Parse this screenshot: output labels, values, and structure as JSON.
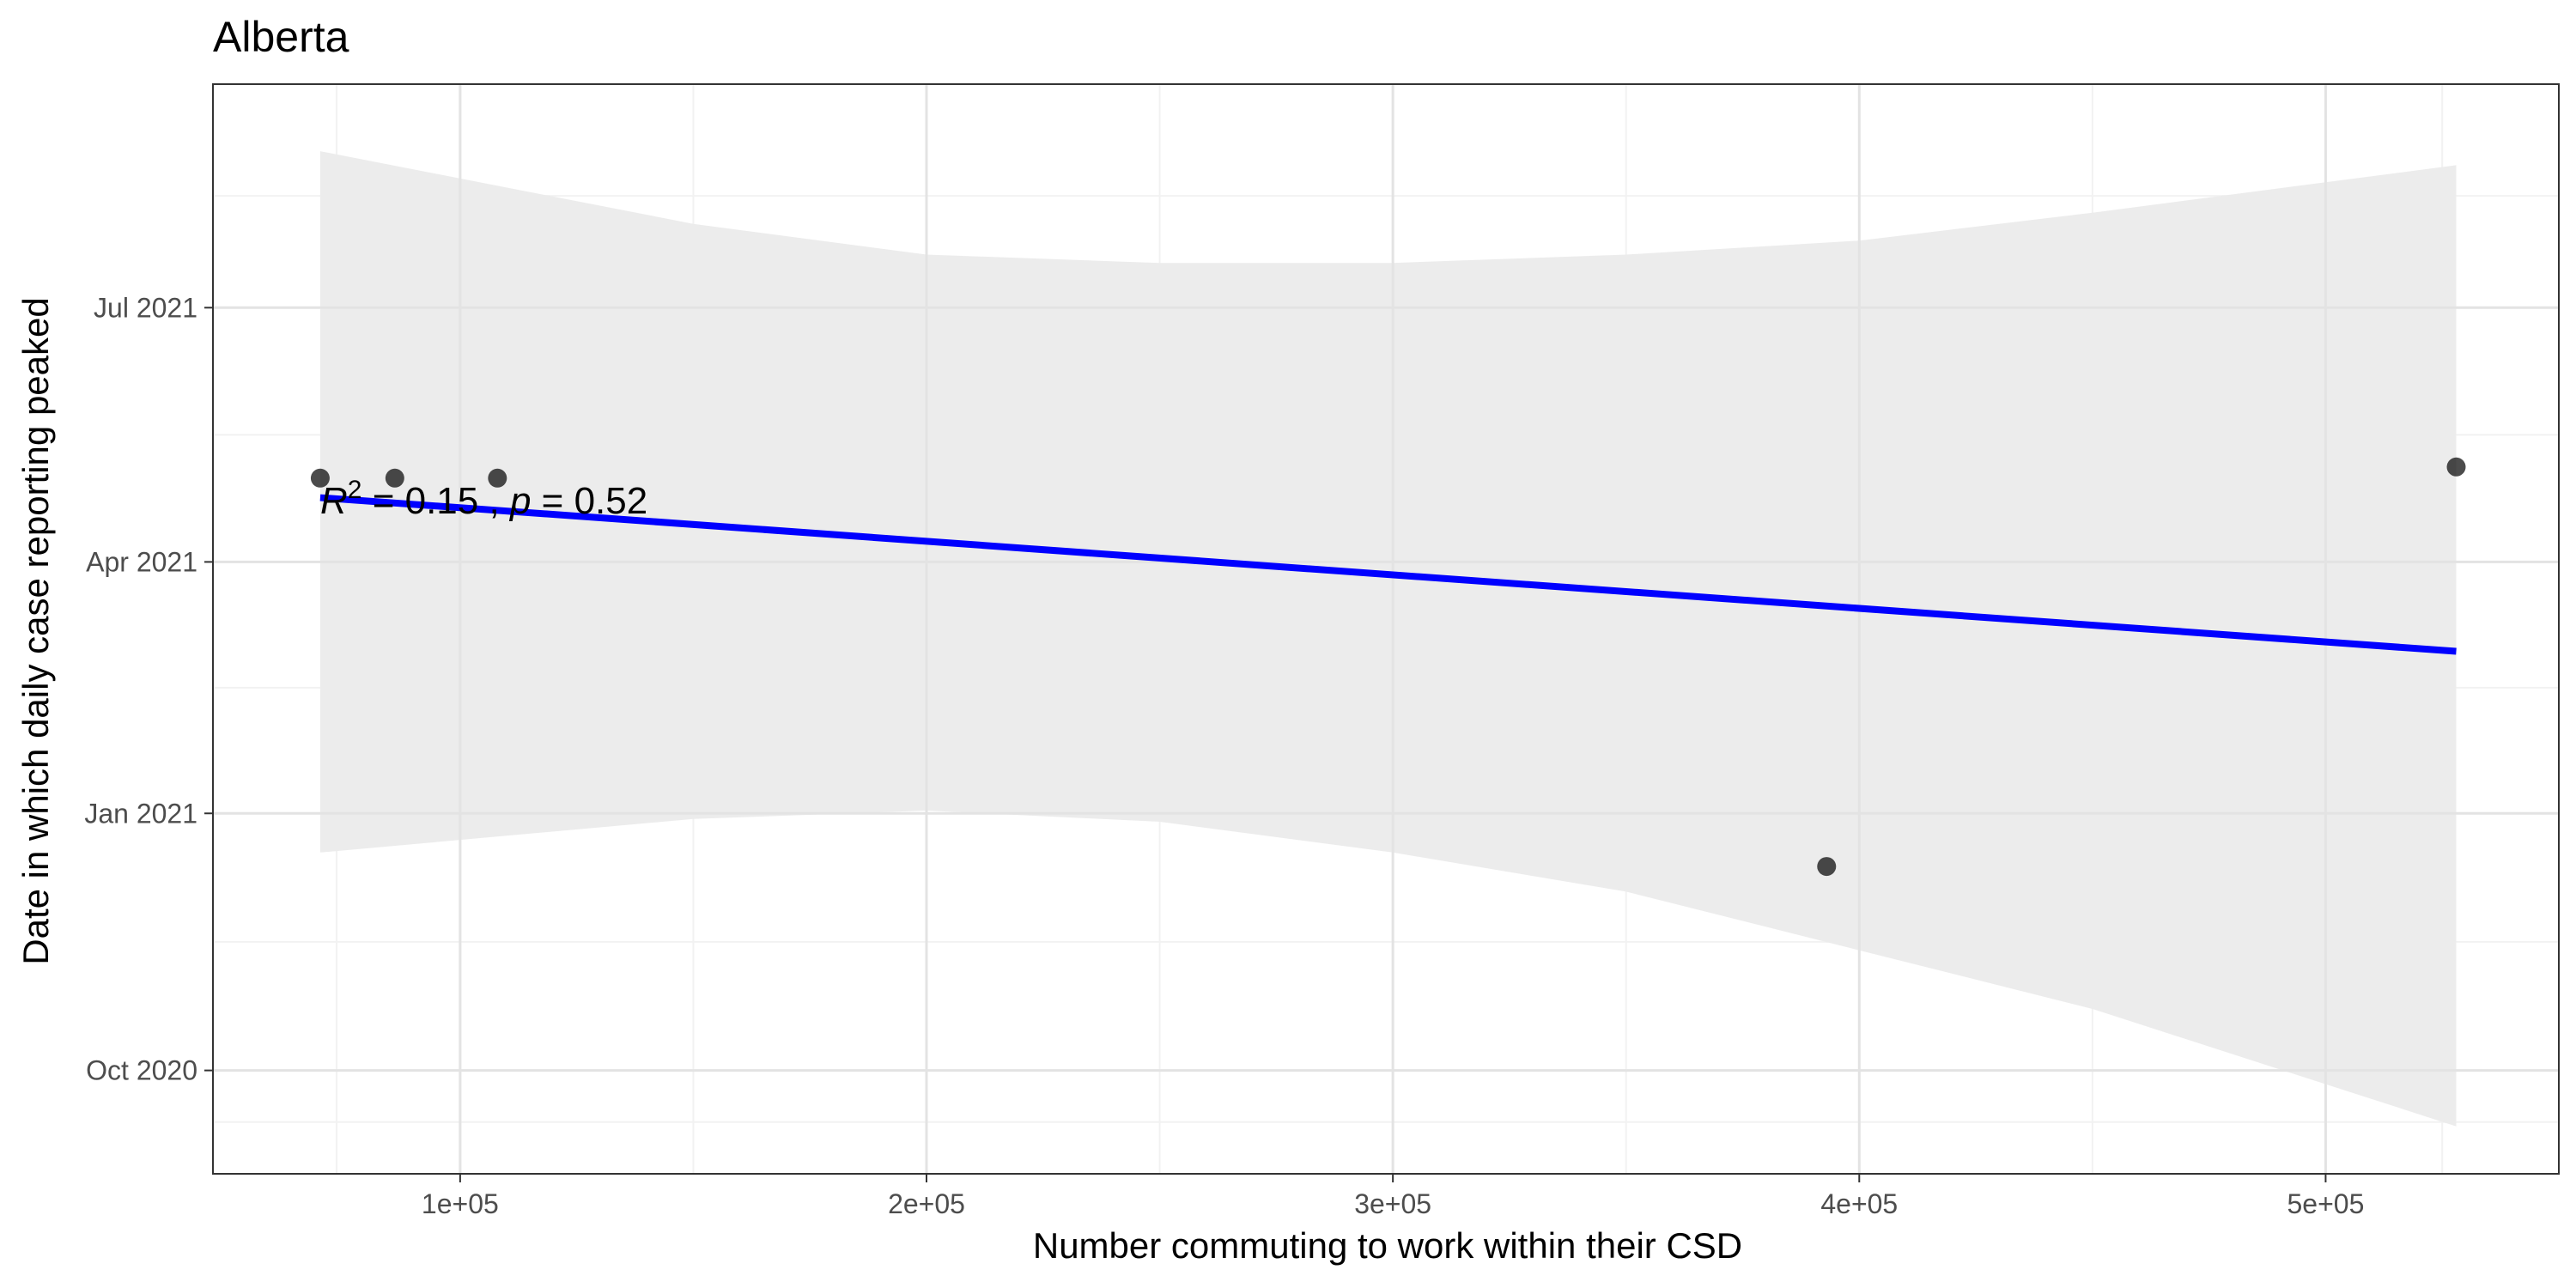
{
  "chart_data": {
    "type": "scatter",
    "title": "Alberta",
    "xlabel": "Number commuting to work within their CSD",
    "ylabel": "Date in which daily case reporting peaked",
    "xlim": [
      47000,
      550000
    ],
    "ylim": [
      "2020-08-25",
      "2021-09-19"
    ],
    "x_ticks": [
      {
        "value": 100000,
        "label": "1e+05"
      },
      {
        "value": 200000,
        "label": "2e+05"
      },
      {
        "value": 300000,
        "label": "3e+05"
      },
      {
        "value": 400000,
        "label": "4e+05"
      },
      {
        "value": 500000,
        "label": "5e+05"
      }
    ],
    "y_ticks": [
      {
        "value": "2020-10-01",
        "label": "Oct 2020"
      },
      {
        "value": "2021-01-01",
        "label": "Jan 2021"
      },
      {
        "value": "2021-04-01",
        "label": "Apr 2021"
      },
      {
        "value": "2021-07-01",
        "label": "Jul 2021"
      }
    ],
    "points": [
      {
        "x": 70000,
        "y": "2021-05-01"
      },
      {
        "x": 86000,
        "y": "2021-05-01"
      },
      {
        "x": 108000,
        "y": "2021-05-01"
      },
      {
        "x": 393000,
        "y": "2020-12-13"
      },
      {
        "x": 528000,
        "y": "2021-05-05"
      }
    ],
    "trend_line": {
      "color": "#0000ff",
      "points": [
        {
          "x": 70000,
          "y": "2021-04-24"
        },
        {
          "x": 528000,
          "y": "2021-02-28"
        }
      ]
    },
    "confidence_band": {
      "color": "#ebebeb",
      "upper": [
        {
          "x": 70000,
          "y": "2021-08-26"
        },
        {
          "x": 150000,
          "y": "2021-07-31"
        },
        {
          "x": 200000,
          "y": "2021-07-20"
        },
        {
          "x": 250000,
          "y": "2021-07-17"
        },
        {
          "x": 300000,
          "y": "2021-07-17"
        },
        {
          "x": 350000,
          "y": "2021-07-20"
        },
        {
          "x": 400000,
          "y": "2021-07-25"
        },
        {
          "x": 450000,
          "y": "2021-08-04"
        },
        {
          "x": 528000,
          "y": "2021-08-21"
        }
      ],
      "lower": [
        {
          "x": 70000,
          "y": "2020-12-18"
        },
        {
          "x": 150000,
          "y": "2020-12-30"
        },
        {
          "x": 200000,
          "y": "2021-01-02"
        },
        {
          "x": 250000,
          "y": "2020-12-29"
        },
        {
          "x": 300000,
          "y": "2020-12-18"
        },
        {
          "x": 350000,
          "y": "2020-12-04"
        },
        {
          "x": 400000,
          "y": "2020-11-13"
        },
        {
          "x": 450000,
          "y": "2020-10-23"
        },
        {
          "x": 528000,
          "y": "2020-09-11"
        }
      ]
    },
    "annotation": {
      "r_symbol": "R",
      "r_exponent": "2",
      "r_text": " = 0.15 , ",
      "p_symbol": "p",
      "p_text": " = 0.52"
    },
    "grid": true,
    "legend": "none"
  }
}
